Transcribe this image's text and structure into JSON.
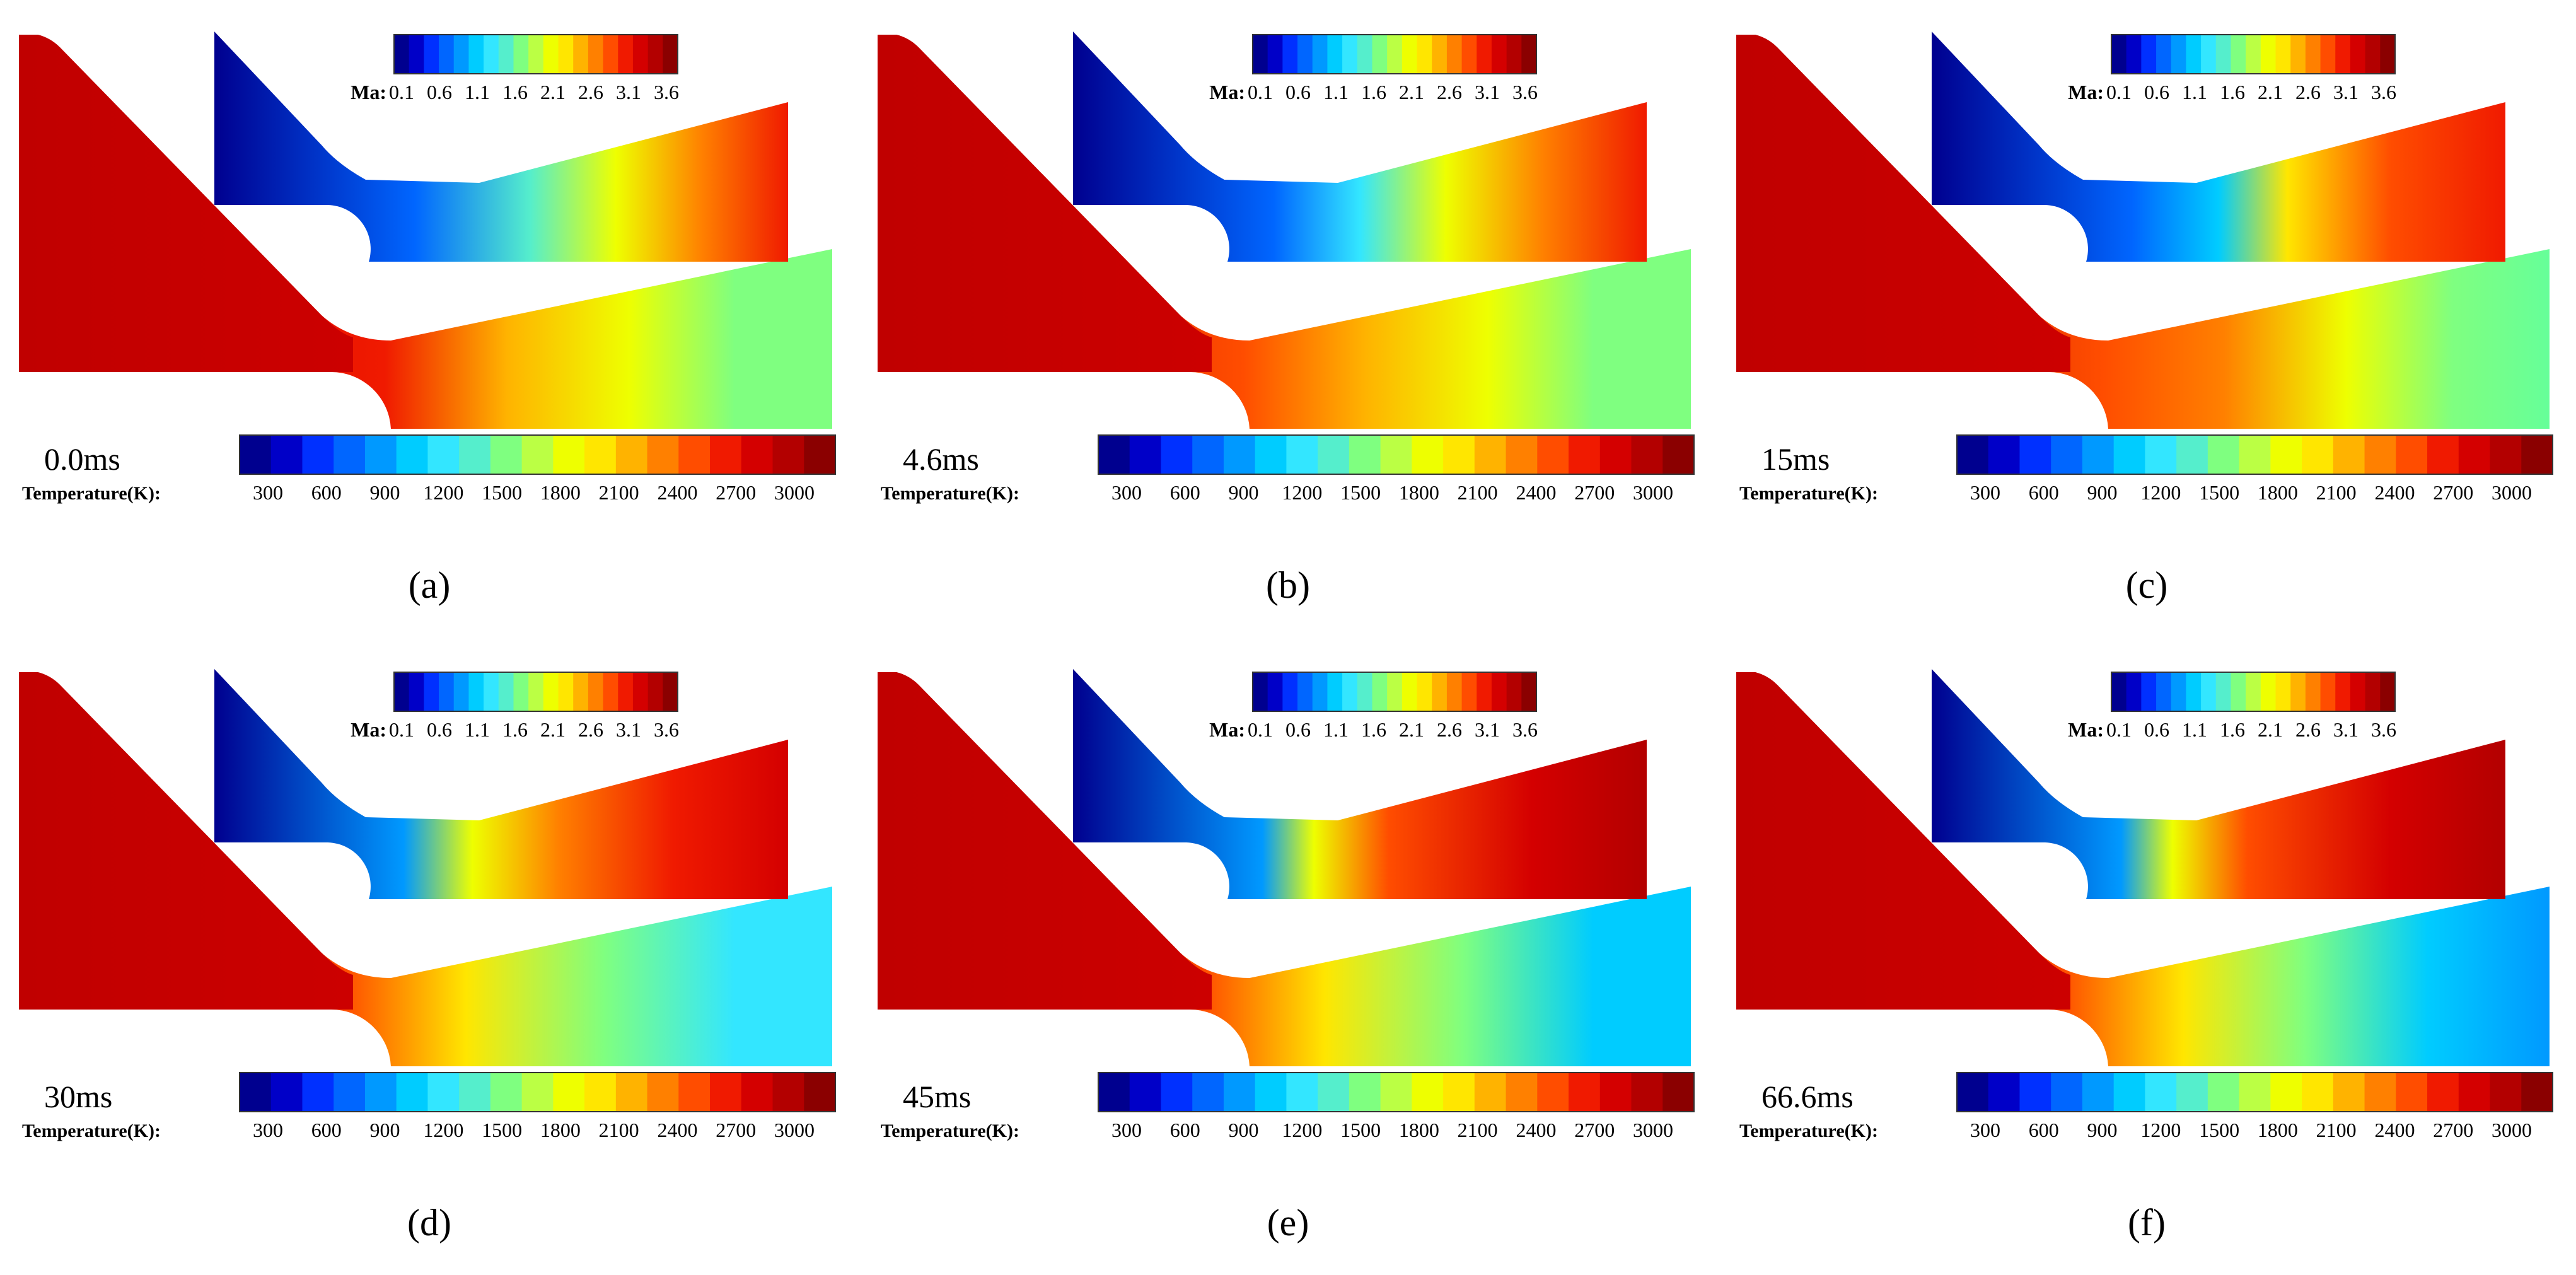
{
  "mach_colorbar": {
    "label": "Ma:",
    "ticks": [
      "0.1",
      "0.6",
      "1.1",
      "1.6",
      "2.1",
      "2.6",
      "3.1",
      "3.6"
    ]
  },
  "temperature_colorbar": {
    "label": "Temperature(K):",
    "ticks": [
      "300",
      "600",
      "900",
      "1200",
      "1500",
      "1800",
      "2100",
      "2400",
      "2700",
      "3000"
    ]
  },
  "palette": [
    "#00008f",
    "#0000c8",
    "#0030ff",
    "#0066ff",
    "#0099ff",
    "#00ccff",
    "#33e6ff",
    "#55eecc",
    "#7fff80",
    "#bbff44",
    "#eeff00",
    "#ffe600",
    "#ffb300",
    "#ff8000",
    "#ff4d00",
    "#f01a00",
    "#d40000",
    "#b30000",
    "#8b0000"
  ],
  "panels": [
    {
      "label": "(a)",
      "time": "0.0ms"
    },
    {
      "label": "(b)",
      "time": "4.6ms"
    },
    {
      "label": "(c)",
      "time": "15ms"
    },
    {
      "label": "(d)",
      "time": "30ms"
    },
    {
      "label": "(e)",
      "time": "45ms"
    },
    {
      "label": "(f)",
      "time": "66.6ms"
    }
  ]
}
